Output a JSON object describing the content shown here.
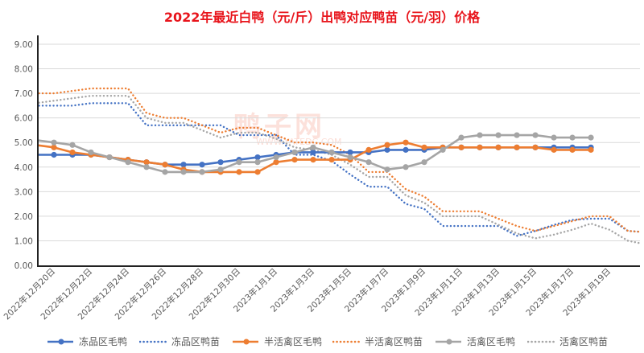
{
  "chart_data": {
    "type": "line",
    "title": "2022年最近白鸭（元/斤）出鸭对应鸭苗（元/羽）价格",
    "xlabel": "",
    "ylabel": "",
    "ylim": [
      0,
      9
    ],
    "y_ticks": [
      "0.00",
      "1.00",
      "2.00",
      "3.00",
      "4.00",
      "5.00",
      "6.00",
      "7.00",
      "8.00",
      "9.00"
    ],
    "x_tick_labels": [
      "2022年12月20日",
      "2022年12月22日",
      "2022年12月24日",
      "2022年12月26日",
      "2022年12月28日",
      "2022年12月30日",
      "2023年1月1日",
      "2023年1月3日",
      "2023年1月5日",
      "2023年1月7日",
      "2023年1月9日",
      "2023年1月11日",
      "2023年1月13日",
      "2023年1月15日",
      "2023年1月17日",
      "2023年1月19日"
    ],
    "x_unit": "days after 2022年12月20日",
    "x_range": [
      -0.87,
      31.65
    ],
    "x": [
      -1,
      0,
      1,
      2,
      3,
      4,
      5,
      6,
      7,
      8,
      9,
      10,
      11,
      12,
      13,
      14,
      15,
      16,
      17,
      18,
      19,
      20,
      21,
      22,
      23,
      24,
      25,
      26,
      27,
      28,
      29,
      30,
      31,
      32
    ],
    "grid": true,
    "legend_position": "bottom",
    "series": [
      {
        "name": "冻品区毛鸭",
        "style": "solid",
        "color": "#4472c4",
        "values": [
          4.5,
          4.5,
          4.5,
          4.5,
          4.4,
          4.3,
          4.2,
          4.1,
          4.1,
          4.1,
          4.2,
          4.3,
          4.4,
          4.5,
          4.6,
          4.6,
          4.6,
          4.6,
          4.6,
          4.7,
          4.7,
          4.7,
          4.8,
          4.8,
          4.8,
          4.8,
          4.8,
          4.8,
          4.8,
          4.8,
          4.8,
          null,
          null,
          null
        ]
      },
      {
        "name": "冻品区鸭苗",
        "style": "dotted",
        "color": "#4472c4",
        "values": [
          6.5,
          6.5,
          6.5,
          6.6,
          6.6,
          6.6,
          5.7,
          5.7,
          5.7,
          5.7,
          5.7,
          5.3,
          5.3,
          5.3,
          4.5,
          4.5,
          4.25,
          3.7,
          3.2,
          3.2,
          2.5,
          2.3,
          1.6,
          1.6,
          1.6,
          1.6,
          1.2,
          1.4,
          1.65,
          1.85,
          1.9,
          1.9,
          1.4,
          1.35
        ]
      },
      {
        "name": "半活禽区毛鸭",
        "style": "solid",
        "color": "#ed7d31",
        "values": [
          4.9,
          4.8,
          4.6,
          4.5,
          4.4,
          4.3,
          4.2,
          4.1,
          3.9,
          3.8,
          3.8,
          3.8,
          3.8,
          4.2,
          4.3,
          4.3,
          4.3,
          4.3,
          4.7,
          4.9,
          5.0,
          4.8,
          4.8,
          4.8,
          4.8,
          4.8,
          4.8,
          4.8,
          4.7,
          4.7,
          4.7,
          null,
          null,
          null
        ]
      },
      {
        "name": "半活禽区鸭苗",
        "style": "dotted",
        "color": "#ed7d31",
        "values": [
          7.0,
          7.0,
          7.1,
          7.2,
          7.2,
          7.2,
          6.2,
          6.0,
          6.0,
          5.7,
          5.4,
          5.6,
          5.6,
          5.3,
          5.0,
          5.0,
          4.9,
          4.5,
          3.8,
          3.8,
          3.1,
          2.8,
          2.2,
          2.2,
          2.2,
          1.9,
          1.6,
          1.4,
          1.6,
          1.8,
          2.0,
          2.0,
          1.4,
          1.35
        ]
      },
      {
        "name": "活禽区毛鸭",
        "style": "solid",
        "color": "#a5a5a5",
        "values": [
          5.1,
          5.0,
          4.9,
          4.6,
          4.4,
          4.2,
          4.0,
          3.8,
          3.8,
          3.8,
          3.9,
          4.2,
          4.2,
          4.4,
          4.6,
          4.8,
          4.6,
          4.4,
          4.2,
          3.9,
          4.0,
          4.2,
          4.7,
          5.2,
          5.3,
          5.3,
          5.3,
          5.3,
          5.2,
          5.2,
          5.2,
          null,
          null,
          null
        ]
      },
      {
        "name": "活禽区鸭苗",
        "style": "dotted",
        "color": "#a5a5a5",
        "values": [
          6.6,
          6.7,
          6.8,
          6.9,
          6.9,
          6.9,
          6.0,
          5.8,
          5.8,
          5.5,
          5.2,
          5.4,
          5.4,
          5.15,
          4.8,
          4.7,
          4.5,
          4.1,
          3.6,
          3.6,
          2.85,
          2.55,
          2.0,
          2.0,
          2.0,
          1.65,
          1.3,
          1.1,
          1.25,
          1.45,
          1.7,
          1.45,
          1.0,
          0.85
        ]
      }
    ]
  },
  "watermark": {
    "brand": "鸭子网",
    "site": "WWW.YATEDC.COM"
  }
}
